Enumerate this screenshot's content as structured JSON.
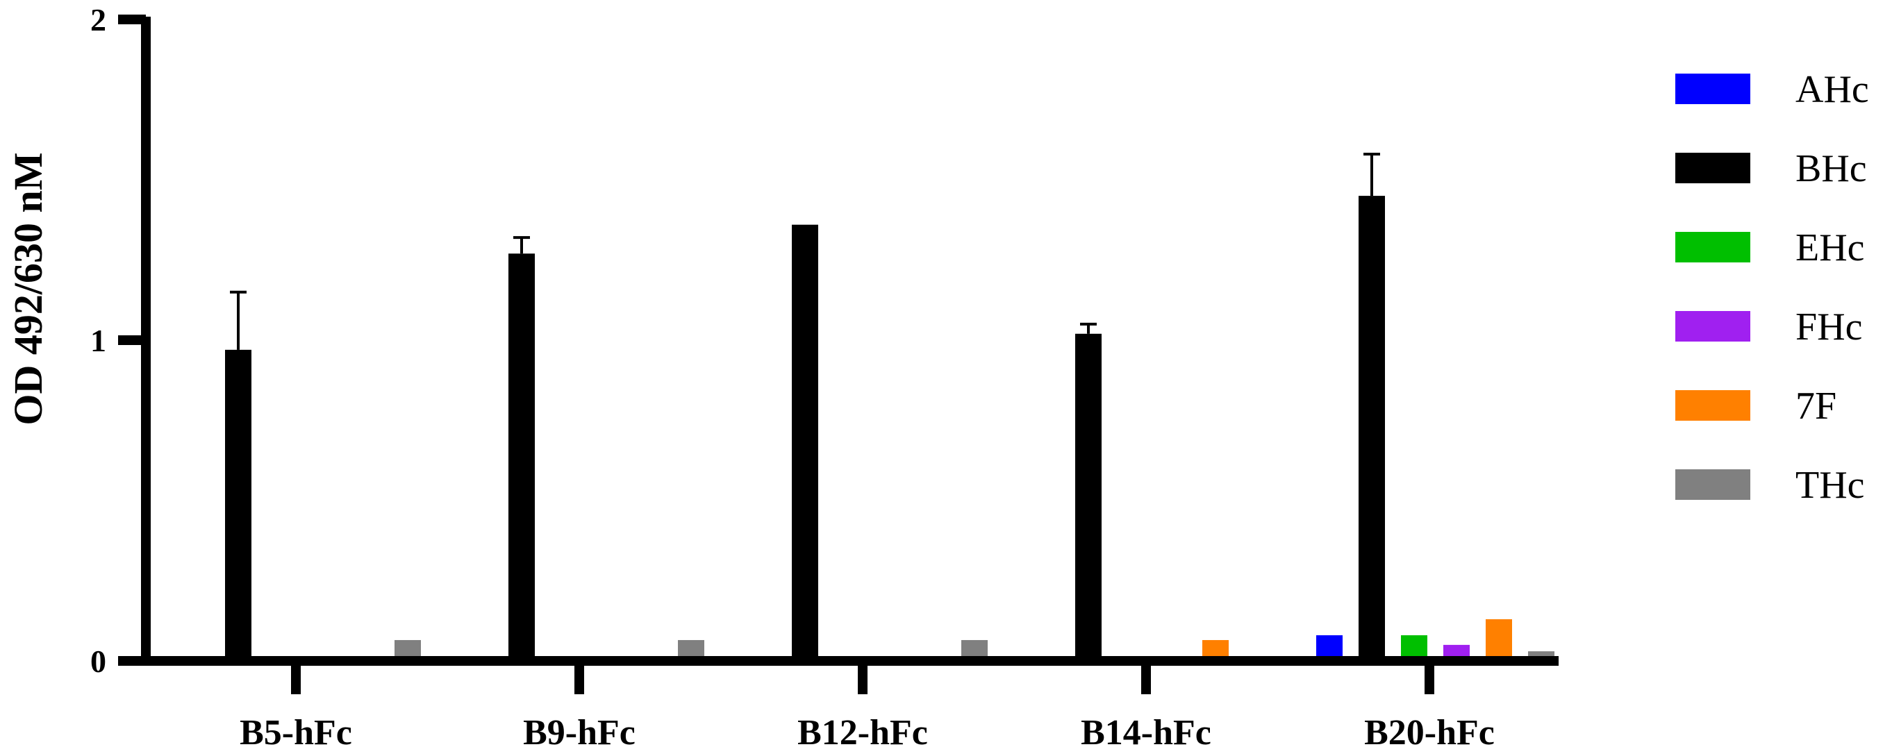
{
  "chart_data": {
    "type": "bar",
    "ylabel": "OD 492/630 nM",
    "xlabel": "",
    "ylim": [
      0,
      2
    ],
    "yticks": [
      "0",
      "1",
      "2"
    ],
    "categories": [
      "B5-hFc",
      "B9-hFc",
      "B12-hFc",
      "B14-hFc",
      "B20-hFc"
    ],
    "legend_position": "right",
    "series": [
      {
        "name": "AHc",
        "color": "#0000ff",
        "values": [
          0.0,
          0.0,
          0.0,
          0.0,
          0.08
        ],
        "errors": [
          0,
          0,
          0,
          0,
          0.005
        ]
      },
      {
        "name": "BHc",
        "color": "#000000",
        "values": [
          0.97,
          1.27,
          1.36,
          1.02,
          1.45
        ],
        "errors": [
          0.18,
          0.05,
          0.005,
          0.03,
          0.13
        ]
      },
      {
        "name": "EHc",
        "color": "#00bf00",
        "values": [
          0.0,
          0.0,
          0.0,
          0.005,
          0.08
        ],
        "errors": [
          0,
          0,
          0,
          0,
          0.005
        ]
      },
      {
        "name": "FHc",
        "color": "#a020f0",
        "values": [
          0.0,
          0.0,
          0.0,
          0.0,
          0.05
        ],
        "errors": [
          0,
          0,
          0,
          0,
          0.005
        ]
      },
      {
        "name": "7F",
        "color": "#ff8000",
        "values": [
          0.0,
          0.005,
          0.0,
          0.065,
          0.13
        ],
        "errors": [
          0,
          0,
          0,
          0.005,
          0.005
        ]
      },
      {
        "name": "THc",
        "color": "#808080",
        "values": [
          0.065,
          0.065,
          0.065,
          0.0,
          0.03
        ],
        "errors": [
          0.005,
          0.005,
          0.005,
          0,
          0.005
        ]
      }
    ]
  }
}
